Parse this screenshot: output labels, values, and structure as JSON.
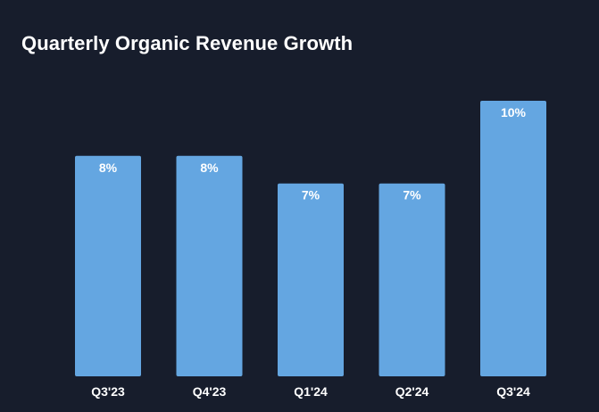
{
  "chart_data": {
    "type": "bar",
    "title": "Quarterly Organic Revenue Growth",
    "categories": [
      "Q3'23",
      "Q4'23",
      "Q1'24",
      "Q2'24",
      "Q3'24"
    ],
    "values": [
      8,
      8,
      7,
      7,
      10
    ],
    "value_labels": [
      "8%",
      "8%",
      "7%",
      "7%",
      "10%"
    ],
    "xlabel": "",
    "ylabel": "",
    "ylim": [
      0,
      10
    ],
    "grid": false,
    "legend": "none",
    "colors": {
      "background": "#171d2c",
      "bar": "#64a6e1",
      "text": "#ffffff"
    }
  }
}
